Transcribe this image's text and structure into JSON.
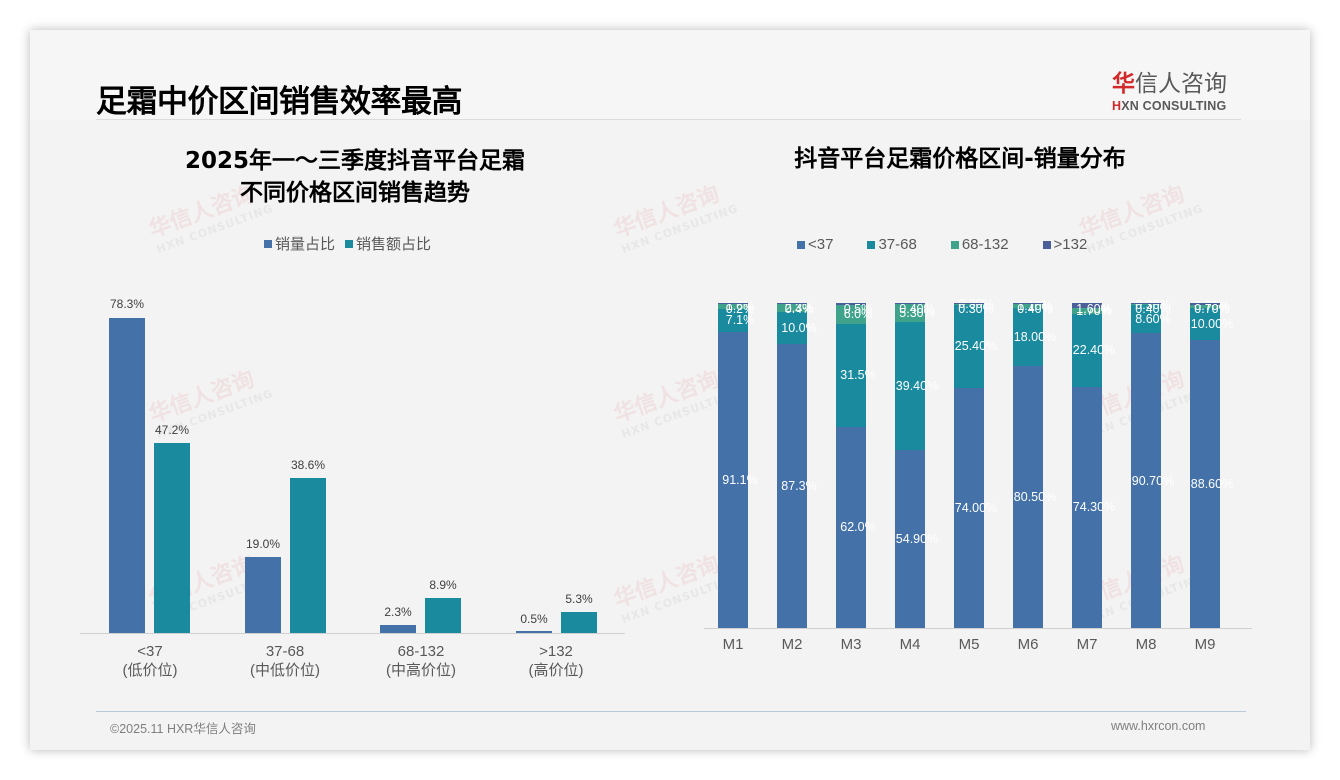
{
  "header": {
    "title": "足霜中价区间销售效率最高",
    "logo_cn_first": "华",
    "logo_cn_rest": "信人咨询",
    "logo_en_first": "H",
    "logo_en_rest": "XN CONSULTING"
  },
  "left_chart": {
    "title_line1": "2025年一～三季度抖音平台足霜",
    "title_line2": "不同价格区间销售趋势",
    "legend": [
      {
        "label": "销量占比",
        "color": "#4472a8"
      },
      {
        "label": "销售额占比",
        "color": "#1a8a9e"
      }
    ],
    "groups": [
      {
        "range": "<37",
        "tier": "(低价位)",
        "volume_label": "78.3%",
        "sales_label": "47.2%"
      },
      {
        "range": "37-68",
        "tier": "(中低价位)",
        "volume_label": "19.0%",
        "sales_label": "38.6%"
      },
      {
        "range": "68-132",
        "tier": "(中高价位)",
        "volume_label": "2.3%",
        "sales_label": "8.9%"
      },
      {
        "range": ">132",
        "tier": "(高价位)",
        "volume_label": "0.5%",
        "sales_label": "5.3%"
      }
    ]
  },
  "right_chart": {
    "title": "抖音平台足霜价格区间-销量分布",
    "legend": [
      {
        "label": "<37",
        "color": "#4472a8"
      },
      {
        "label": "37-68",
        "color": "#1a8a9e"
      },
      {
        "label": "68-132",
        "color": "#3ea38a"
      },
      {
        "label": ">132",
        "color": "#4a5e9a"
      }
    ],
    "months": [
      {
        "label": "M1",
        "s1": "91.1%",
        "s2": "7.1%",
        "s3": "1.6%",
        "s4": "0.2%"
      },
      {
        "label": "M2",
        "s1": "87.3%",
        "s2": "10.0%",
        "s3": "2.3%",
        "s4": "0.4%"
      },
      {
        "label": "M3",
        "s1": "62.0%",
        "s2": "31.5%",
        "s3": "6.0%",
        "s4": "0.5%"
      },
      {
        "label": "M4",
        "s1": "54.90%",
        "s2": "39.40%",
        "s3": "5.30%",
        "s4": "0.40%"
      },
      {
        "label": "M5",
        "s1": "74.00%",
        "s2": "25.40%",
        "s3": "0.30%",
        "s4": "0.30%"
      },
      {
        "label": "M6",
        "s1": "80.50%",
        "s2": "18.00%",
        "s3": "1.10%",
        "s4": "0.40%"
      },
      {
        "label": "M7",
        "s1": "74.30%",
        "s2": "22.40%",
        "s3": "1.70%",
        "s4": "1.60%"
      },
      {
        "label": "M8",
        "s1": "90.70%",
        "s2": "8.60%",
        "s3": "0.30%",
        "s4": "0.40%"
      },
      {
        "label": "M9",
        "s1": "88.60%",
        "s2": "10.00%",
        "s3": "0.70%",
        "s4": "0.70%"
      }
    ]
  },
  "footer": {
    "copyright": "©2025.11 HXR华信人咨询",
    "website": "www.hxrcon.com"
  },
  "watermark": {
    "cn": "华信人咨询",
    "en": "HXN CONSULTING"
  },
  "colors": {
    "volume": "#4472a8",
    "sales": "#1a8a9e",
    "mid_high": "#3ea38a",
    "high": "#4a5e9a"
  },
  "chart_data": [
    {
      "type": "bar",
      "title": "2025年一～三季度抖音平台足霜不同价格区间销售趋势",
      "categories": [
        "<37 (低价位)",
        "37-68 (中低价位)",
        "68-132 (中高价位)",
        ">132 (高价位)"
      ],
      "series": [
        {
          "name": "销量占比",
          "values": [
            78.3,
            19.0,
            2.3,
            0.5
          ]
        },
        {
          "name": "销售额占比",
          "values": [
            47.2,
            38.6,
            8.9,
            5.3
          ]
        }
      ],
      "xlabel": "",
      "ylabel": "",
      "unit": "%",
      "grid": false,
      "legend_position": "top"
    },
    {
      "type": "bar",
      "stacked": true,
      "percent_stacked": true,
      "title": "抖音平台足霜价格区间-销量分布",
      "categories": [
        "M1",
        "M2",
        "M3",
        "M4",
        "M5",
        "M6",
        "M7",
        "M8",
        "M9"
      ],
      "series": [
        {
          "name": "<37",
          "values": [
            91.1,
            87.3,
            62.0,
            54.9,
            74.0,
            80.5,
            74.3,
            90.7,
            88.6
          ]
        },
        {
          "name": "37-68",
          "values": [
            7.1,
            10.0,
            31.5,
            39.4,
            25.4,
            18.0,
            22.4,
            8.6,
            10.0
          ]
        },
        {
          "name": "68-132",
          "values": [
            1.6,
            2.3,
            6.0,
            5.3,
            0.3,
            1.1,
            1.7,
            0.3,
            0.7
          ]
        },
        {
          "name": ">132",
          "values": [
            0.2,
            0.4,
            0.5,
            0.4,
            0.3,
            0.4,
            1.6,
            0.4,
            0.7
          ]
        }
      ],
      "ylim": [
        0,
        100
      ],
      "unit": "%",
      "grid": false,
      "legend_position": "top"
    }
  ]
}
